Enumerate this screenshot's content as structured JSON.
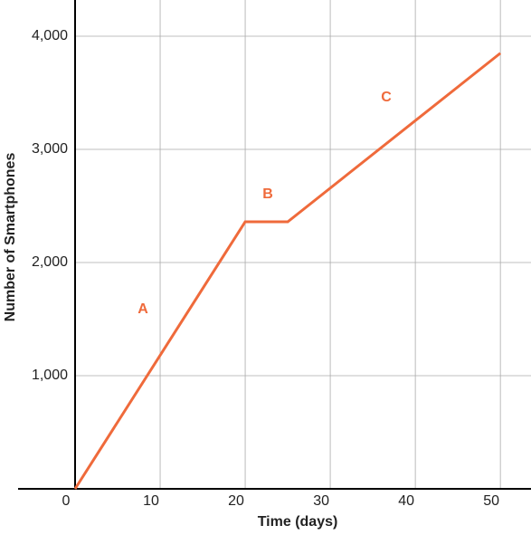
{
  "chart_data": {
    "type": "line",
    "x_label": "Time (days)",
    "y_label": "Number of Smartphones",
    "x": [
      0,
      20,
      25,
      50
    ],
    "values": [
      0,
      2360,
      2360,
      3850
    ],
    "color": "#ef6a3b",
    "xlim": [
      -6.7,
      53.6
    ],
    "ylim": [
      0,
      4320
    ],
    "xticks": [
      0,
      10,
      20,
      30,
      40,
      50
    ],
    "yticks": [
      {
        "value": 1000,
        "label": "1,000"
      },
      {
        "value": 2000,
        "label": "2,000"
      },
      {
        "value": 3000,
        "label": "3,000"
      },
      {
        "value": 4000,
        "label": "4,000"
      }
    ],
    "grid": true,
    "annotations": [
      "A",
      "B",
      "C"
    ]
  }
}
